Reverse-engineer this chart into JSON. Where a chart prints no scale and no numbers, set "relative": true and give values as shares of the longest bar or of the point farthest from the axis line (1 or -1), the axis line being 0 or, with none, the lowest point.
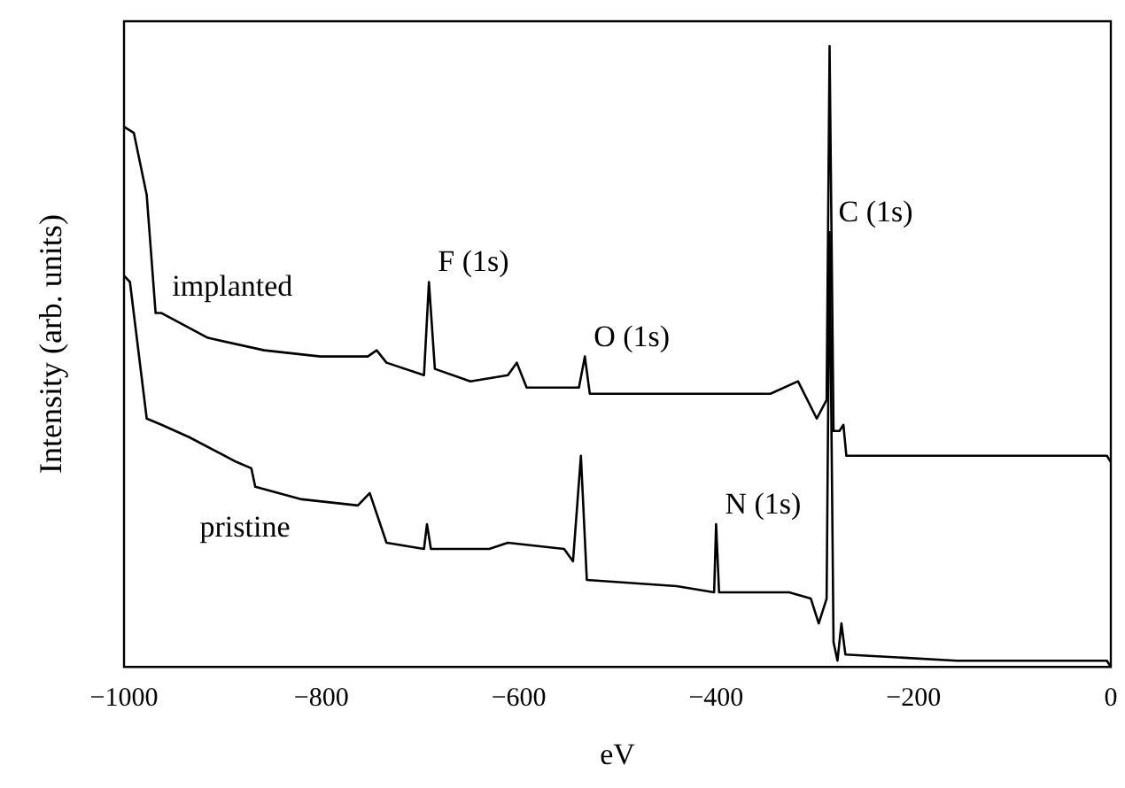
{
  "chart_data": {
    "type": "line",
    "relative": true,
    "xlabel": "eV",
    "ylabel": "Intensity (arb. units)",
    "xlim": [
      -1000,
      0
    ],
    "xticks": [
      -1000,
      -800,
      -600,
      -400,
      -200,
      0
    ],
    "grid": false,
    "legend": false,
    "marker": "none",
    "line_style": "solid",
    "annotations": [
      {
        "text": "F (1s)",
        "x": -691,
        "y": 0.62
      },
      {
        "text": "O (1s)",
        "x": -533,
        "y": 0.5
      },
      {
        "text": "N (1s)",
        "x": -400,
        "y": 0.23
      },
      {
        "text": "C (1s)",
        "x": -285,
        "y": 0.7
      }
    ],
    "series": [
      {
        "name": "implanted",
        "color": "#000000",
        "x": [
          -1000,
          -990,
          -977,
          -968,
          -962,
          -915,
          -858,
          -801,
          -753,
          -744,
          -734,
          -696,
          -691,
          -685,
          -649,
          -611,
          -602,
          -592,
          -539,
          -533,
          -528,
          -440,
          -345,
          -317,
          -298,
          -288,
          -285,
          -281,
          -275,
          -271,
          -268,
          -156,
          -4,
          0
        ],
        "values": [
          0.87,
          0.86,
          0.76,
          0.57,
          0.57,
          0.53,
          0.51,
          0.5,
          0.5,
          0.51,
          0.49,
          0.47,
          0.62,
          0.48,
          0.46,
          0.47,
          0.49,
          0.45,
          0.45,
          0.5,
          0.44,
          0.44,
          0.44,
          0.46,
          0.4,
          0.43,
          1,
          0.38,
          0.38,
          0.39,
          0.34,
          0.34,
          0.34,
          0.33
        ]
      },
      {
        "name": "pristine",
        "color": "#000000",
        "x": [
          -1000,
          -994,
          -977,
          -962,
          -934,
          -886,
          -871,
          -867,
          -820,
          -763,
          -751,
          -734,
          -696,
          -693,
          -689,
          -630,
          -611,
          -554,
          -545,
          -537,
          -531,
          -440,
          -402,
          -400,
          -397,
          -326,
          -304,
          -296,
          -288,
          -285,
          -281,
          -277,
          -273,
          -269,
          -156,
          -4,
          0
        ],
        "values": [
          0.63,
          0.62,
          0.4,
          0.39,
          0.37,
          0.33,
          0.32,
          0.29,
          0.27,
          0.26,
          0.28,
          0.2,
          0.19,
          0.23,
          0.19,
          0.19,
          0.2,
          0.19,
          0.17,
          0.34,
          0.14,
          0.13,
          0.12,
          0.23,
          0.12,
          0.12,
          0.11,
          0.07,
          0.11,
          0.7,
          0.04,
          0.01,
          0.07,
          0.02,
          0.01,
          0.01,
          0
        ]
      }
    ]
  }
}
